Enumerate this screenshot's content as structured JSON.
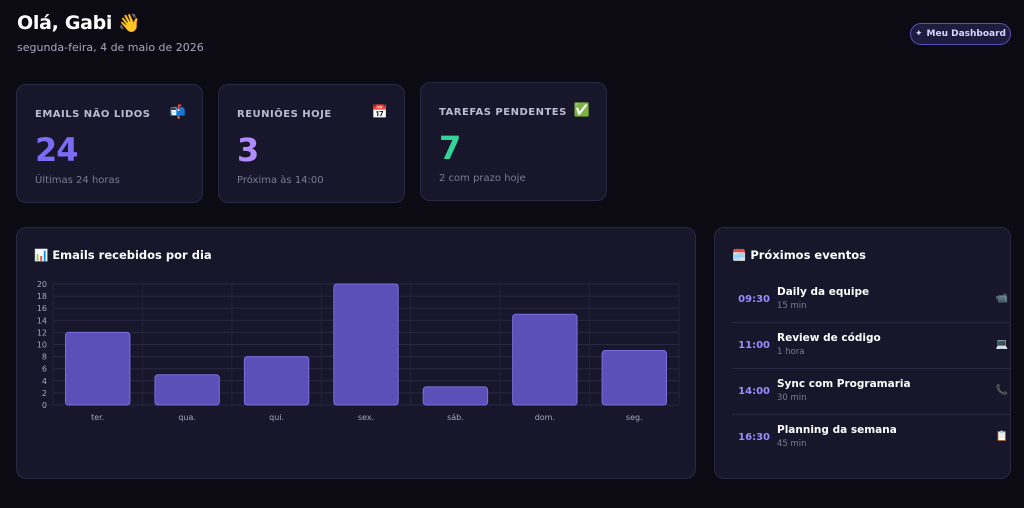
{
  "header": {
    "greeting": "Olá, Gabi",
    "greeting_icon": "👋",
    "date": "segunda-feira, 4 de maio de 2026",
    "dashboard_button": "Meu Dashboard",
    "dashboard_button_icon": "✦"
  },
  "stats": [
    {
      "label": "EMAILS NÃO LIDOS",
      "icon": "📬",
      "value": "24",
      "sub": "Últimas 24 horas",
      "color": "#7b6cf6"
    },
    {
      "label": "REUNIÕES HOJE",
      "icon": "📅",
      "value": "3",
      "sub": "Próxima às 14:00",
      "color": "#b28cff"
    },
    {
      "label": "TAREFAS PENDENTES",
      "icon": "✅",
      "value": "7",
      "sub": "2 com prazo hoje",
      "color": "#34d399"
    }
  ],
  "chart_panel": {
    "title": "Emails recebidos por dia",
    "title_icon": "📊"
  },
  "chart_data": {
    "type": "bar",
    "categories": [
      "ter.",
      "qua.",
      "qui.",
      "sex.",
      "sáb.",
      "dom.",
      "seg."
    ],
    "values": [
      12,
      5,
      8,
      20,
      3,
      15,
      9
    ],
    "yticks": [
      "0",
      "2",
      "4",
      "6",
      "8",
      "10",
      "12",
      "14",
      "16",
      "18",
      "20"
    ],
    "ylim": [
      0,
      20
    ],
    "grid": true,
    "bar_color": "#5b4fb8"
  },
  "events_panel": {
    "title": "Próximos eventos",
    "title_icon": "🗓️",
    "items": [
      {
        "time": "09:30",
        "title": "Daily da equipe",
        "duration": "15 min",
        "icon": "📹"
      },
      {
        "time": "11:00",
        "title": "Review de código",
        "duration": "1 hora",
        "icon": "💻"
      },
      {
        "time": "14:00",
        "title": "Sync com Programaria",
        "duration": "30 min",
        "icon": "📞"
      },
      {
        "time": "16:30",
        "title": "Planning da semana",
        "duration": "45 min",
        "icon": "📋"
      }
    ]
  }
}
